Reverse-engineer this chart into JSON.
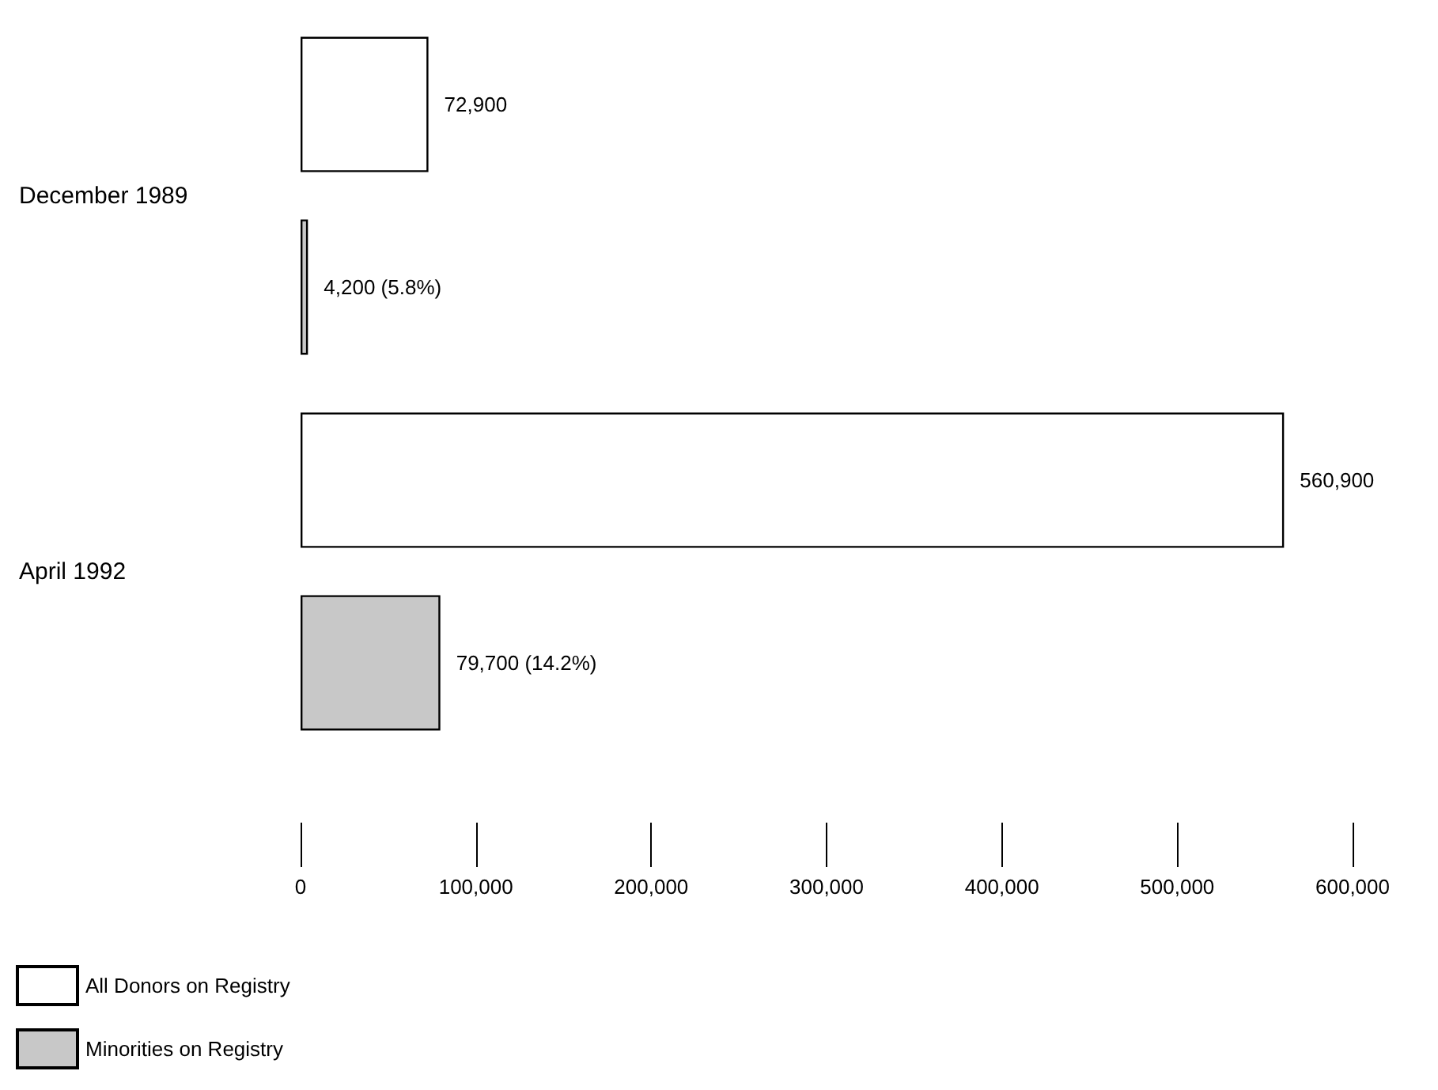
{
  "chart_data": {
    "type": "bar",
    "orientation": "horizontal",
    "categories": [
      "December 1989",
      "April 1992"
    ],
    "series": [
      {
        "name": "All Donors on Registry",
        "color": "#ffffff",
        "values": [
          72900,
          560900
        ],
        "value_labels": [
          "72,900",
          "560,900"
        ]
      },
      {
        "name": "Minorities on Registry",
        "color": "#c8c8c8",
        "values": [
          4200,
          79700
        ],
        "value_labels": [
          "4,200 (5.8%)",
          "79,700 (14.2%)"
        ]
      }
    ],
    "xlim": [
      0,
      600000
    ],
    "xticks": [
      0,
      {
        "value": 100000,
        "label": "100,000"
      },
      {
        "value": 200000,
        "label": "200,000"
      },
      {
        "value": 300000,
        "label": "300,000"
      },
      {
        "value": 400000,
        "label": "400,000"
      },
      {
        "value": 500000,
        "label": "500,000"
      },
      {
        "value": 600000,
        "label": "600,000"
      }
    ],
    "grid": false,
    "legend": "bottom left"
  }
}
